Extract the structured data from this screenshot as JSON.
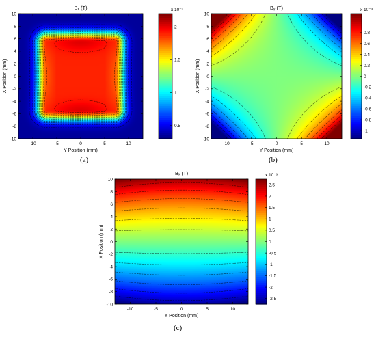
{
  "chart_data": [
    {
      "type": "heatmap",
      "panel_label": "(a)",
      "title": "Bₓ (T)",
      "xlabel": "Y Position (mm)",
      "ylabel": "X Position (mm)",
      "xlim": [
        -13,
        13
      ],
      "ylim": [
        -10,
        10
      ],
      "xticks": [
        -10,
        -5,
        0,
        5,
        10
      ],
      "yticks": [
        -10,
        -8,
        -6,
        -4,
        -2,
        0,
        2,
        4,
        6,
        8,
        10
      ],
      "colorbar": {
        "scale_label": "x 10⁻³",
        "ticks": [
          0.5,
          1,
          1.5,
          2
        ],
        "range": [
          0.3,
          2.2
        ]
      },
      "colormap": "jet",
      "contour_lines": "dashed"
    },
    {
      "type": "heatmap",
      "panel_label": "(b)",
      "title": "Bᵧ (T)",
      "xlabel": "Y Position (mm)",
      "ylabel": "X Position (mm)",
      "xlim": [
        -13,
        13
      ],
      "ylim": [
        -10,
        10
      ],
      "xticks": [
        -10,
        -5,
        0,
        5,
        10
      ],
      "yticks": [
        -10,
        -8,
        -6,
        -4,
        -2,
        0,
        2,
        4,
        6,
        8,
        10
      ],
      "colorbar": {
        "scale_label": "x 10⁻³",
        "ticks": [
          -1,
          -0.8,
          -0.6,
          -0.4,
          -0.2,
          0,
          0.2,
          0.4,
          0.6,
          0.8
        ],
        "range": [
          -1.15,
          1.15
        ]
      },
      "colormap": "jet",
      "contour_lines": "dashed"
    },
    {
      "type": "heatmap",
      "panel_label": "(c)",
      "title": "Bₓ (T)",
      "xlabel": "Y Position (mm)",
      "ylabel": "X Position (mm)",
      "xlim": [
        -13,
        13
      ],
      "ylim": [
        -10,
        10
      ],
      "xticks": [
        -10,
        -5,
        0,
        5,
        10
      ],
      "yticks": [
        -10,
        -8,
        -6,
        -4,
        -2,
        0,
        2,
        4,
        6,
        8,
        10
      ],
      "colorbar": {
        "scale_label": "x 10⁻³",
        "ticks": [
          -2.5,
          -2,
          -1.5,
          -1,
          -0.5,
          0,
          0.5,
          1,
          1.5,
          2,
          2.5
        ],
        "range": [
          -2.75,
          2.75
        ]
      },
      "colormap": "jet",
      "contour_lines": "dashed"
    }
  ]
}
